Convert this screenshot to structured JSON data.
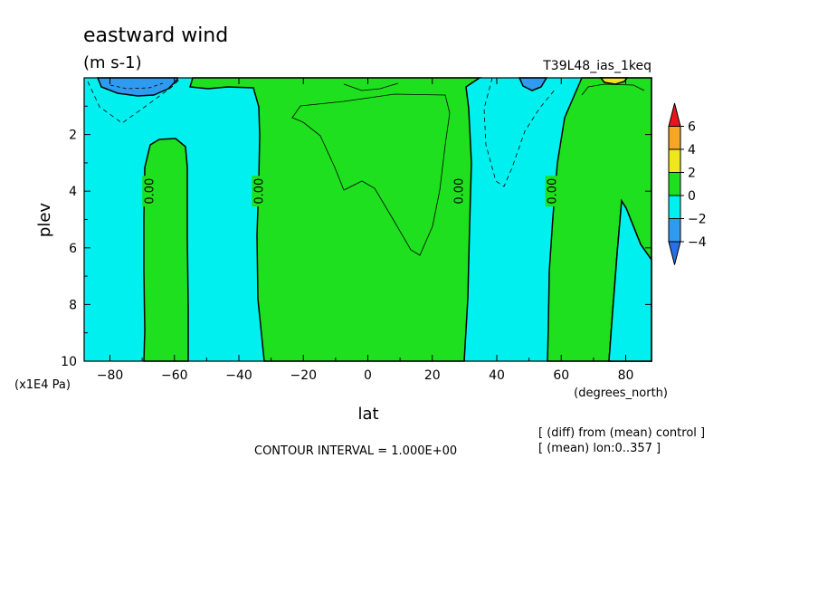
{
  "chart_data": {
    "type": "contour",
    "title": "eastward wind",
    "units": "(m s-1)",
    "run_label": "T39L48_ias_1keq",
    "xlabel": "lat",
    "xunits": "(degrees_north)",
    "ylabel": "plev",
    "yunits": "(x1E4 Pa)",
    "xlim": [
      -88,
      88
    ],
    "ylim": [
      10,
      0
    ],
    "x_ticks": [
      -80,
      -60,
      -40,
      -20,
      0,
      20,
      40,
      60,
      80
    ],
    "x_tick_labels": [
      "−80",
      "−60",
      "−40",
      "−20",
      "0",
      "20",
      "40",
      "60",
      "80"
    ],
    "y_ticks": [
      2,
      4,
      6,
      8,
      10
    ],
    "y_tick_labels": [
      "2",
      "4",
      "6",
      "8",
      "10"
    ],
    "contour_interval": "CONTOUR INTERVAL = 1.000E+00",
    "zero_contour_label": "0.00",
    "zero_contour_label_positions": [
      {
        "lat": -68,
        "plev": 4.0
      },
      {
        "lat": -34,
        "plev": 4.0
      },
      {
        "lat": 28,
        "plev": 4.0
      },
      {
        "lat": 57,
        "plev": 4.0
      }
    ],
    "regions": [
      {
        "sign": "positive",
        "lat_range": [
          -69,
          -56
        ],
        "plev_range": [
          2.3,
          10
        ],
        "level": "0..2"
      },
      {
        "sign": "positive",
        "lat_range": [
          -35,
          31
        ],
        "plev_range": [
          0,
          10
        ],
        "level": "0..2"
      },
      {
        "sign": "positive",
        "lat_range": [
          56,
          88
        ],
        "plev_range": [
          0,
          10
        ],
        "level": "0..2"
      },
      {
        "sign": "negative",
        "lat_range": [
          -88,
          -69
        ],
        "plev_range": [
          0,
          10
        ],
        "level": "-2..0"
      },
      {
        "sign": "negative",
        "lat_range": [
          -56,
          -35
        ],
        "plev_range": [
          0,
          10
        ],
        "level": "-2..0"
      },
      {
        "sign": "negative",
        "lat_range": [
          31,
          56
        ],
        "plev_range": [
          0,
          10
        ],
        "level": "-2..0"
      },
      {
        "sign": "negative",
        "lat_range": [
          -82,
          -66
        ],
        "plev_range": [
          0,
          0.6
        ],
        "level": "-4..-2"
      },
      {
        "sign": "negative",
        "lat_range": [
          48,
          56
        ],
        "plev_range": [
          0,
          0.4
        ],
        "level": "-4..-2"
      },
      {
        "sign": "positive",
        "lat_range": [
          73,
          80
        ],
        "plev_range": [
          0,
          0.2
        ],
        "level": "2..4"
      }
    ],
    "colorbar": {
      "levels": [
        "6",
        "4",
        "2",
        "0",
        "−2",
        "−4"
      ],
      "colors": [
        "#e8151b",
        "#f5a623",
        "#f0e61e",
        "#1ee01e",
        "#00f0f0",
        "#2e9bf0",
        "#2a6fe8"
      ]
    },
    "footnotes": [
      "[ (diff) from (mean) control ]",
      "[ (mean) lon:0..357 ]"
    ]
  }
}
